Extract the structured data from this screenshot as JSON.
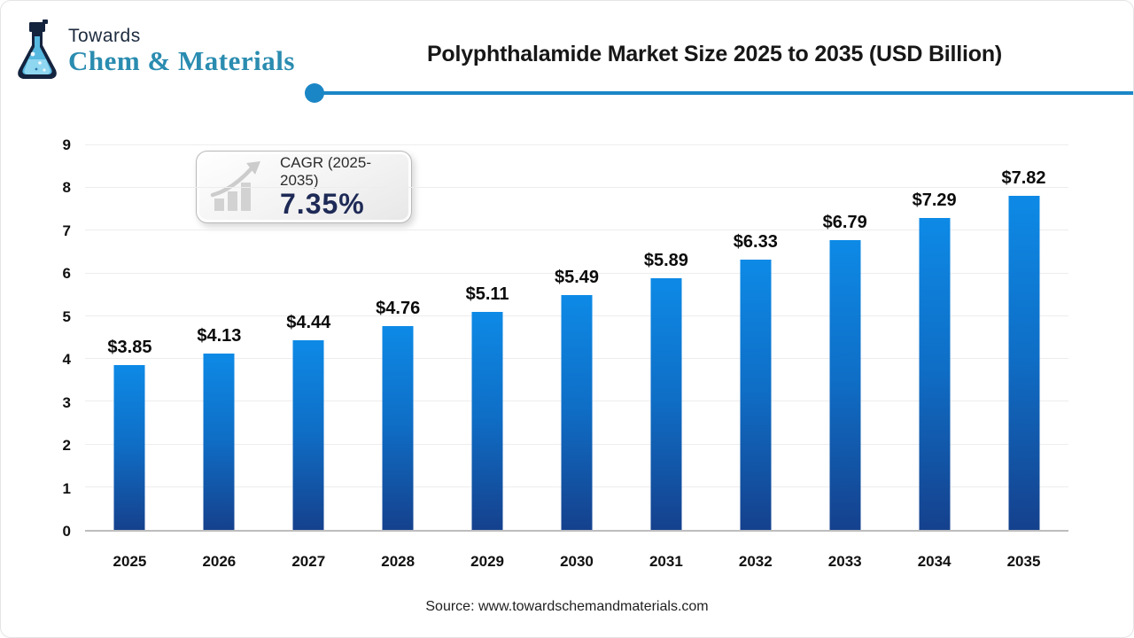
{
  "logo": {
    "top": "Towards",
    "bottom": "Chem & Materials"
  },
  "header": {
    "title": "Polyphthalamide Market Size 2025 to 2035 (USD Billion)"
  },
  "cagr_badge": {
    "label": "CAGR (2025-2035)",
    "value": "7.35%"
  },
  "source": "Source: www.towardschemandmaterials.com",
  "colors": {
    "bar_top": "#0d8ae6",
    "bar_bottom": "#15418d",
    "divider": "#1b86c6",
    "cagr_value": "#1e2a56",
    "logo_teal": "#2a8cb0",
    "logo_navy": "#1d2b3f"
  },
  "chart_data": {
    "type": "bar",
    "title": "Polyphthalamide Market Size 2025 to 2035 (USD Billion)",
    "categories": [
      "2025",
      "2026",
      "2027",
      "2028",
      "2029",
      "2030",
      "2031",
      "2032",
      "2033",
      "2034",
      "2035"
    ],
    "values": [
      3.85,
      4.13,
      4.44,
      4.76,
      5.11,
      5.49,
      5.89,
      6.33,
      6.79,
      7.29,
      7.82
    ],
    "labels": [
      "$3.85",
      "$4.13",
      "$4.44",
      "$4.76",
      "$5.11",
      "$5.49",
      "$5.89",
      "$6.33",
      "$6.79",
      "$7.29",
      "$7.82"
    ],
    "xlabel": "",
    "ylabel": "",
    "ylim": [
      0,
      9
    ],
    "yticks": [
      0,
      1,
      2,
      3,
      4,
      5,
      6,
      7,
      8,
      9
    ],
    "grid": true,
    "legend": false
  }
}
